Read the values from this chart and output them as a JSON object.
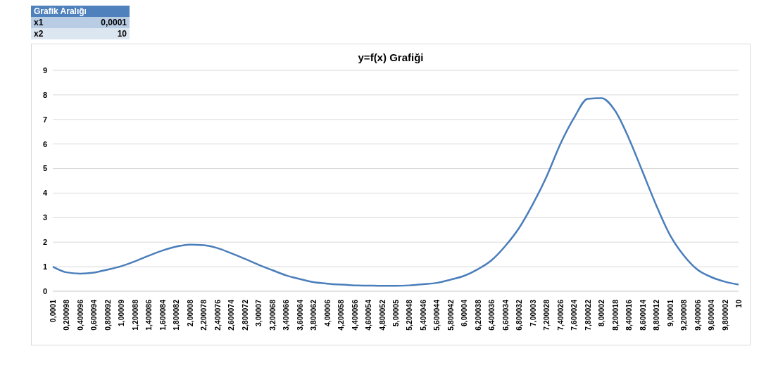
{
  "chart_data": {
    "type": "line",
    "title": "y=f(x) Grafiği",
    "annotations": [
      "Grafik Aralığı",
      "x1",
      "0,0001",
      "x2",
      "10"
    ],
    "categories": [
      "0,0001",
      "0,200098",
      "0,400096",
      "0,600094",
      "0,800092",
      "1,00009",
      "1,200088",
      "1,400086",
      "1,600084",
      "1,800082",
      "2,00008",
      "2,200078",
      "2,400076",
      "2,600074",
      "2,800072",
      "3,00007",
      "3,200068",
      "3,400066",
      "3,600064",
      "3,800062",
      "4,00006",
      "4,200058",
      "4,400056",
      "4,600054",
      "4,800052",
      "5,00005",
      "5,200048",
      "5,400046",
      "5,600044",
      "5,800042",
      "6,00004",
      "6,200038",
      "6,400036",
      "6,600034",
      "6,800032",
      "7,00003",
      "7,200028",
      "7,400026",
      "7,600024",
      "7,800022",
      "8,00002",
      "8,200018",
      "8,400016",
      "8,600014",
      "8,800012",
      "9,00001",
      "9,200008",
      "9,400006",
      "9,600004",
      "9,800002",
      "10"
    ],
    "series": [
      {
        "color": "#4a7ebb",
        "values": [
          1.0,
          0.77,
          0.72,
          0.76,
          0.88,
          1.02,
          1.22,
          1.45,
          1.66,
          1.82,
          1.9,
          1.88,
          1.76,
          1.55,
          1.32,
          1.08,
          0.86,
          0.65,
          0.5,
          0.37,
          0.31,
          0.27,
          0.24,
          0.23,
          0.22,
          0.22,
          0.24,
          0.29,
          0.34,
          0.47,
          0.63,
          0.9,
          1.27,
          1.85,
          2.58,
          3.55,
          4.67,
          5.99,
          7.06,
          7.84,
          7.87,
          7.35,
          6.23,
          4.87,
          3.5,
          2.29,
          1.46,
          0.88,
          0.58,
          0.39,
          0.27
        ]
      }
    ],
    "ylim": [
      0,
      9
    ],
    "yticks": [
      0,
      1,
      2,
      3,
      4,
      5,
      6,
      7,
      8,
      9
    ],
    "grid": "y",
    "legend": false,
    "marker": "none",
    "line_style": "solid"
  }
}
